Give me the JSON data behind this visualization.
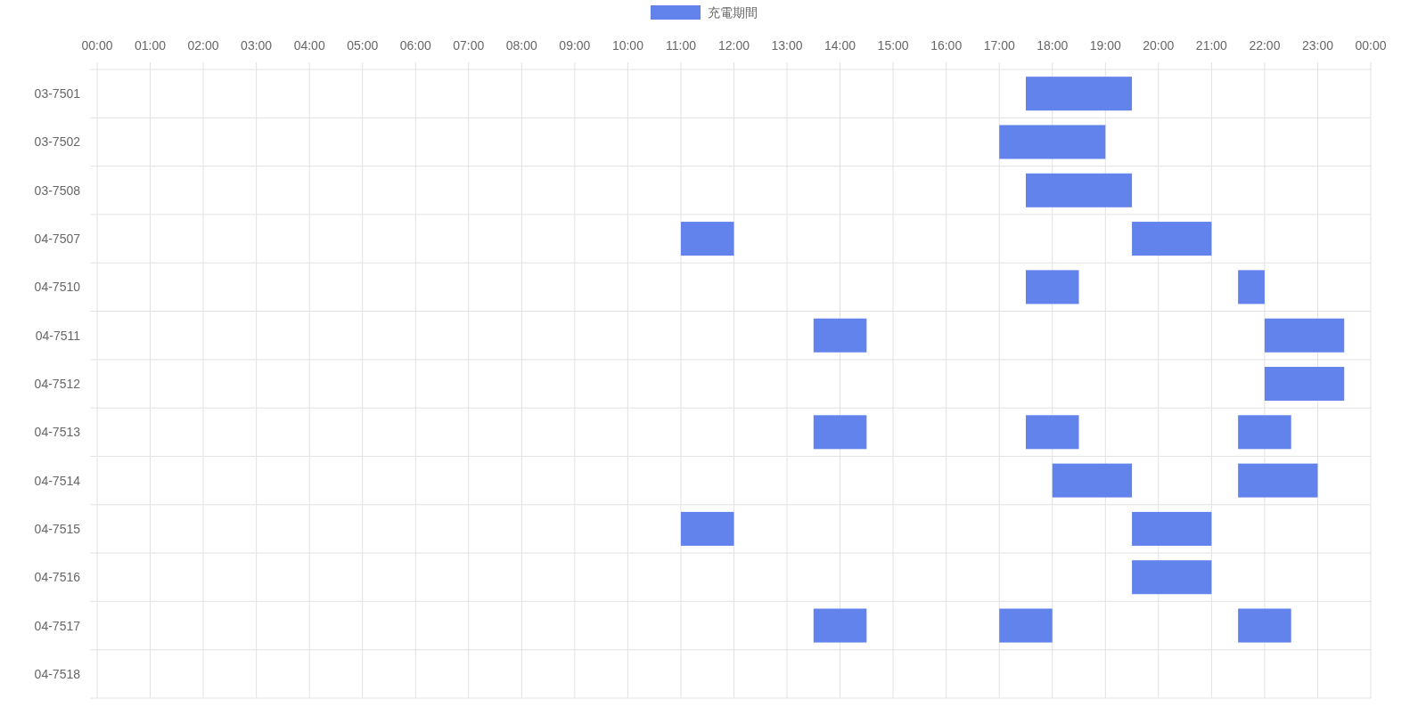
{
  "chart_data": {
    "type": "bar",
    "orientation": "horizontal",
    "categories": [
      "03-7501",
      "03-7502",
      "03-7508",
      "04-7507",
      "04-7510",
      "04-7511",
      "04-7512",
      "04-7513",
      "04-7514",
      "04-7515",
      "04-7516",
      "04-7517",
      "04-7518"
    ],
    "series": [
      {
        "name": "充電期間",
        "color": "#6282ec",
        "base": [
          17.5,
          17,
          17.5,
          11,
          17.5,
          13.5,
          22,
          13.5,
          18,
          11,
          19.5,
          13.5,
          null
        ],
        "values": [
          2,
          2,
          2,
          1,
          1,
          1,
          1.5,
          1,
          1.5,
          1,
          1.5,
          1,
          null
        ]
      },
      {
        "color": "#6282ec",
        "base": [
          null,
          null,
          null,
          19.5,
          21.5,
          22,
          null,
          17.5,
          21.5,
          19.5,
          null,
          17,
          null
        ],
        "values": [
          null,
          null,
          null,
          1.5,
          0.5,
          1.5,
          null,
          1,
          1.5,
          1.5,
          null,
          1,
          null
        ]
      },
      {
        "color": "#6282ec",
        "base": [
          null,
          null,
          null,
          null,
          null,
          null,
          null,
          21.5,
          null,
          null,
          null,
          21.5,
          null
        ],
        "values": [
          null,
          null,
          null,
          null,
          null,
          null,
          null,
          1,
          null,
          null,
          null,
          1,
          null
        ]
      }
    ],
    "xlim": [
      0,
      24
    ],
    "xticks": [
      {
        "value": 0,
        "label": "00:00"
      },
      {
        "value": 1,
        "label": "01:00"
      },
      {
        "value": 2,
        "label": "02:00"
      },
      {
        "value": 3,
        "label": "03:00"
      },
      {
        "value": 4,
        "label": "04:00"
      },
      {
        "value": 5,
        "label": "05:00"
      },
      {
        "value": 6,
        "label": "06:00"
      },
      {
        "value": 7,
        "label": "07:00"
      },
      {
        "value": 8,
        "label": "08:00"
      },
      {
        "value": 9,
        "label": "09:00"
      },
      {
        "value": 10,
        "label": "10:00"
      },
      {
        "value": 11,
        "label": "11:00"
      },
      {
        "value": 12,
        "label": "12:00"
      },
      {
        "value": 13,
        "label": "13:00"
      },
      {
        "value": 14,
        "label": "14:00"
      },
      {
        "value": 15,
        "label": "15:00"
      },
      {
        "value": 16,
        "label": "16:00"
      },
      {
        "value": 17,
        "label": "17:00"
      },
      {
        "value": 18,
        "label": "18:00"
      },
      {
        "value": 19,
        "label": "19:00"
      },
      {
        "value": 20,
        "label": "20:00"
      },
      {
        "value": 21,
        "label": "21:00"
      },
      {
        "value": 22,
        "label": "22:00"
      },
      {
        "value": 23,
        "label": "23:00"
      },
      {
        "value": 24,
        "label": "00:00"
      }
    ],
    "grid": true,
    "legend": "top"
  }
}
